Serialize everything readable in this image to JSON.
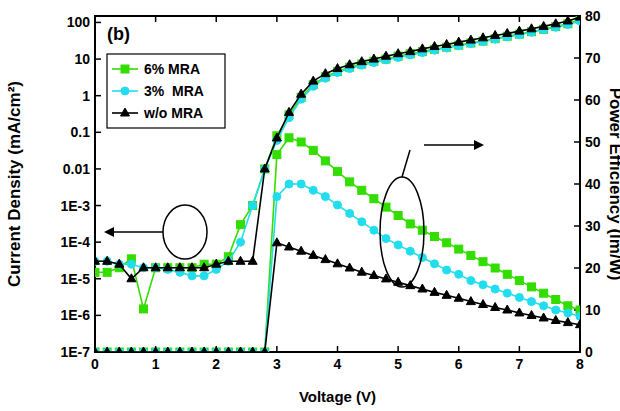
{
  "chart_data": {
    "type": "line",
    "annotation": "(b)",
    "x_label": "Voltage (V)",
    "y_label": "Current Density (mA/cm²)",
    "y2_label": "Power Efficiency (lm/W)",
    "log": "y",
    "legend": "upper left",
    "x": [
      0,
      0.2,
      0.4,
      0.6,
      0.8,
      1.0,
      1.2,
      1.4,
      1.6,
      1.8,
      2.0,
      2.2,
      2.4,
      2.6,
      2.8,
      3.0,
      3.2,
      3.4,
      3.6,
      3.8,
      4.0,
      4.2,
      4.4,
      4.6,
      4.8,
      5.0,
      5.2,
      5.4,
      5.6,
      5.8,
      6.0,
      6.2,
      6.4,
      6.6,
      6.8,
      7.0,
      7.2,
      7.4,
      7.6,
      7.8,
      8.0
    ],
    "xlim": [
      0,
      8
    ],
    "xticks": [
      0,
      1,
      2,
      3,
      4,
      5,
      6,
      7,
      8
    ],
    "ylim": [
      1e-07,
      150
    ],
    "yticks": [
      {
        "value": 1e-07,
        "label": "1E-7"
      },
      {
        "value": 1e-06,
        "label": "1E-6"
      },
      {
        "value": 1e-05,
        "label": "1E-5"
      },
      {
        "value": 0.0001,
        "label": "1E-4"
      },
      {
        "value": 0.001,
        "label": "1E-3"
      },
      0.01,
      0.1,
      1,
      10,
      100
    ],
    "y2lim": [
      0,
      80
    ],
    "y2ticks": [
      0,
      10,
      20,
      30,
      40,
      50,
      60,
      70,
      80
    ],
    "series": [
      {
        "name": "6% MRA",
        "color": "#33dd00",
        "marker": "square",
        "values": [
          1.5e-05,
          1.5e-05,
          2e-05,
          3.5e-05,
          1.5e-06,
          2e-05,
          2e-05,
          2e-05,
          2e-05,
          2.5e-05,
          2.5e-05,
          4e-05,
          0.0003,
          0.001,
          0.01,
          0.08,
          0.3,
          0.9,
          2,
          3.3,
          4.6,
          6,
          7.3,
          8.7,
          10,
          12,
          14,
          16,
          18.5,
          21,
          24,
          27.5,
          31,
          36,
          42,
          48,
          56,
          65,
          77,
          92,
          120
        ]
      },
      {
        "name": "3%  MRA",
        "color": "#22ddee",
        "marker": "circle",
        "values": [
          3e-05,
          3e-05,
          2.5e-05,
          2.5e-05,
          2e-05,
          2e-05,
          1.8e-05,
          1.5e-05,
          1.2e-05,
          1.2e-05,
          1.8e-05,
          3e-05,
          0.0001,
          0.001,
          0.01,
          0.06,
          0.25,
          0.8,
          1.8,
          3,
          4.3,
          5.5,
          6.8,
          8,
          9.5,
          11,
          13,
          15,
          17.5,
          20,
          23,
          26.5,
          30,
          35,
          40,
          46,
          54,
          63,
          74,
          88,
          110
        ]
      },
      {
        "name": "w/o MRA",
        "color": "#000000",
        "marker": "triangle",
        "values": [
          3e-05,
          3e-05,
          2.5e-05,
          1e-05,
          2e-05,
          2e-05,
          2e-05,
          2e-05,
          2e-05,
          2e-05,
          2.5e-05,
          3e-05,
          3e-05,
          3e-05,
          0.01,
          0.07,
          0.35,
          1.1,
          2.5,
          4,
          5.5,
          7,
          8.5,
          10,
          12,
          14,
          16,
          19,
          22,
          25,
          29,
          33,
          38,
          44,
          50,
          58,
          67,
          78,
          92,
          110,
          140
        ]
      },
      {
        "name": "6% MRA",
        "color": "#33dd00",
        "marker": "square",
        "axis": "y2",
        "values": [
          0,
          0,
          0,
          0,
          0,
          0,
          0,
          0,
          0,
          0,
          0,
          0,
          0,
          0,
          0,
          47,
          51,
          50,
          48,
          45.5,
          43,
          40.5,
          38.5,
          36.5,
          34.5,
          32.5,
          30.5,
          29,
          27.5,
          26,
          24.5,
          23,
          21.5,
          20,
          18.5,
          17,
          15.5,
          14,
          12.5,
          11,
          10
        ]
      },
      {
        "name": "3%  MRA",
        "color": "#22ddee",
        "marker": "circle",
        "axis": "y2",
        "values": [
          0,
          0,
          0,
          0,
          0,
          0,
          0,
          0,
          0,
          0,
          0,
          0,
          0,
          0,
          0,
          37,
          40,
          40,
          38.5,
          37,
          35,
          33,
          31,
          29,
          27,
          25.5,
          24,
          22.5,
          21,
          19.5,
          18.5,
          17,
          16,
          15,
          14,
          13,
          12,
          11,
          10,
          9.3,
          8.5
        ]
      },
      {
        "name": "w/o MRA",
        "color": "#000000",
        "marker": "triangle",
        "axis": "y2",
        "values": [
          0,
          0,
          0,
          0,
          0,
          0,
          0,
          0,
          0,
          0,
          0,
          0,
          0,
          0,
          0,
          26,
          25,
          24,
          23,
          22,
          21,
          20,
          19,
          18.2,
          17.4,
          16.6,
          15.8,
          15,
          14.2,
          13.5,
          12.8,
          12,
          11.3,
          10.6,
          10,
          9.3,
          8.7,
          8.1,
          7.5,
          7,
          6.5
        ]
      }
    ]
  }
}
